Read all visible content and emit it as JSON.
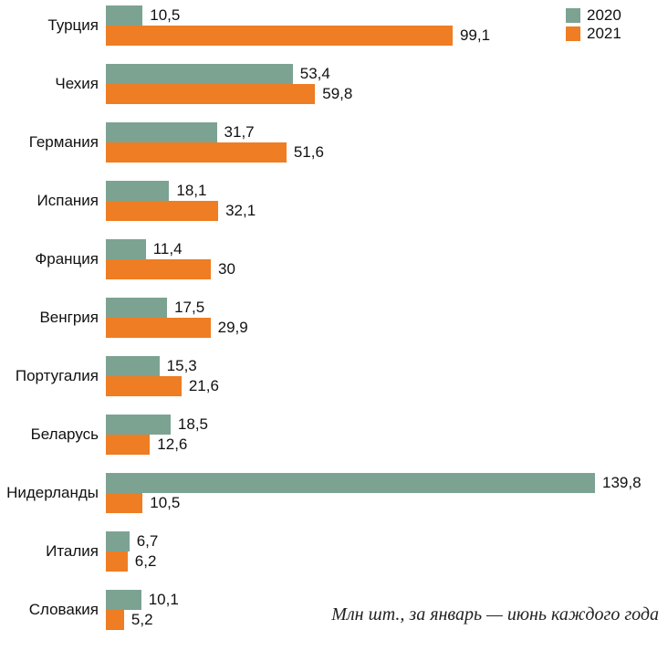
{
  "caption": "Млн шт., за январь — июнь каждого года",
  "legend": {
    "items": [
      {
        "label": "2020",
        "color": "#7ca392"
      },
      {
        "label": "2021",
        "color": "#ee7d23"
      }
    ],
    "position": "top-right"
  },
  "chart_data": {
    "type": "bar",
    "orientation": "horizontal",
    "title": "",
    "xlabel": "",
    "ylabel": "",
    "units": "Млн шт., за январь — июнь каждого года",
    "grid": false,
    "xmax": 139.8,
    "categories": [
      "Турция",
      "Чехия",
      "Германия",
      "Испания",
      "Франция",
      "Венгрия",
      "Португалия",
      "Беларусь",
      "Нидерланды",
      "Италия",
      "Словакия"
    ],
    "series": [
      {
        "name": "2020",
        "color": "#7ca392",
        "values": [
          10.5,
          53.4,
          31.7,
          18.1,
          11.4,
          17.5,
          15.3,
          18.5,
          139.8,
          6.7,
          10.1
        ]
      },
      {
        "name": "2021",
        "color": "#ee7d23",
        "values": [
          99.1,
          59.8,
          51.6,
          32.1,
          30,
          29.9,
          21.6,
          12.6,
          10.5,
          6.2,
          5.2
        ]
      }
    ],
    "decimal_separator": ","
  }
}
